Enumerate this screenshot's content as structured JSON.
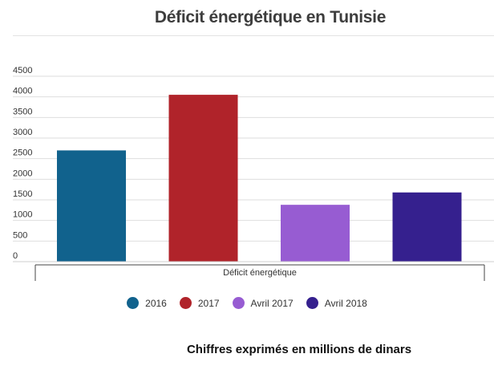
{
  "chart_data": {
    "type": "bar",
    "title": "Déficit énergétique en Tunisie",
    "categories": [
      "Déficit énergétique"
    ],
    "series": [
      {
        "name": "2016",
        "values": [
          2700
        ],
        "color": "#11628d"
      },
      {
        "name": "2017",
        "values": [
          4050
        ],
        "color": "#b0232a"
      },
      {
        "name": "Avril 2017",
        "values": [
          1380
        ],
        "color": "#975cd2"
      },
      {
        "name": "Avril 2018",
        "values": [
          1680
        ],
        "color": "#35208e"
      }
    ],
    "yticks": [
      "0",
      "500",
      "1000",
      "1500",
      "2000",
      "2500",
      "3000",
      "3500",
      "4000",
      "4500"
    ],
    "ylim": [
      0,
      4500
    ],
    "xlabel": "",
    "ylabel": "",
    "grid": true,
    "legend_position": "bottom"
  },
  "caption": "Chiffres exprimés en millions de dinars"
}
